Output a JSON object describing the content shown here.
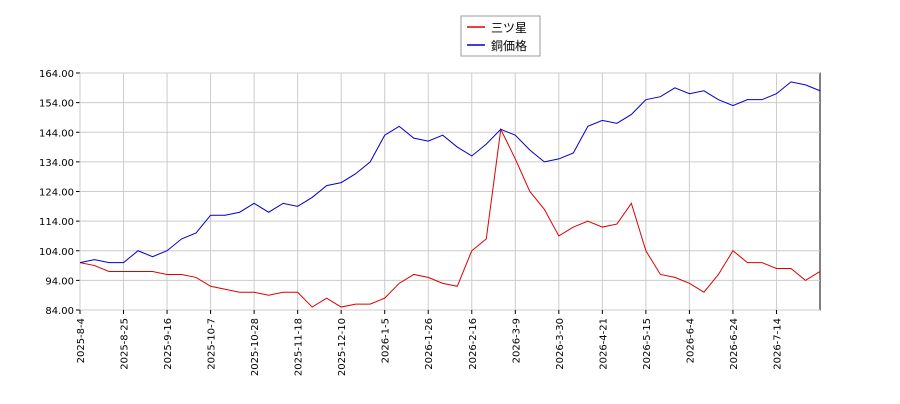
{
  "chart_data": {
    "type": "line",
    "categories": [
      "2025-8-4",
      null,
      null,
      "2025-8-25",
      null,
      null,
      "2025-9-16",
      null,
      null,
      "2025-10-7",
      null,
      null,
      "2025-10-28",
      null,
      null,
      "2025-11-18",
      null,
      null,
      "2025-12-10",
      null,
      null,
      "2026-1-5",
      null,
      null,
      "2026-1-26",
      null,
      null,
      "2026-2-16",
      null,
      null,
      "2026-3-9",
      null,
      null,
      "2026-3-30",
      null,
      null,
      "2026-4-21",
      null,
      null,
      "2026-5-15",
      null,
      null,
      "2026-6-4",
      null,
      null,
      "2026-6-24",
      null,
      null,
      "2026-7-14",
      null,
      null,
      null
    ],
    "series": [
      {
        "name": "三ツ星",
        "color": "#dd0000",
        "values": [
          100,
          99,
          97,
          97,
          97,
          97,
          96,
          96,
          95,
          92,
          91,
          90,
          90,
          89,
          90,
          90,
          85,
          88,
          85,
          86,
          86,
          88,
          93,
          96,
          95,
          93,
          92,
          104,
          108,
          145,
          135,
          124,
          118,
          109,
          112,
          114,
          112,
          113,
          120,
          104,
          96,
          95,
          93,
          90,
          96,
          104,
          100,
          100,
          98,
          98,
          94,
          97
        ]
      },
      {
        "name": "銅価格",
        "color": "#0000cc",
        "values": [
          100,
          101,
          100,
          100,
          104,
          102,
          104,
          108,
          110,
          116,
          116,
          117,
          120,
          117,
          120,
          119,
          122,
          126,
          127,
          130,
          134,
          143,
          146,
          142,
          141,
          143,
          139,
          136,
          140,
          145,
          143,
          138,
          134,
          135,
          137,
          146,
          148,
          147,
          150,
          155,
          156,
          159,
          157,
          158,
          155,
          153,
          155,
          155,
          157,
          161,
          160,
          158
        ]
      }
    ],
    "ylim": [
      84,
      164
    ],
    "yticks": [
      {
        "value": 84,
        "label": "84.00"
      },
      {
        "value": 94,
        "label": "94.00"
      },
      {
        "value": 104,
        "label": "104.00"
      },
      {
        "value": 114,
        "label": "114.00"
      },
      {
        "value": 124,
        "label": "124.00"
      },
      {
        "value": 134,
        "label": "134.00"
      },
      {
        "value": 144,
        "label": "144.00"
      },
      {
        "value": 154,
        "label": "154.00"
      },
      {
        "value": 164,
        "label": "164.00"
      }
    ],
    "grid": true
  }
}
